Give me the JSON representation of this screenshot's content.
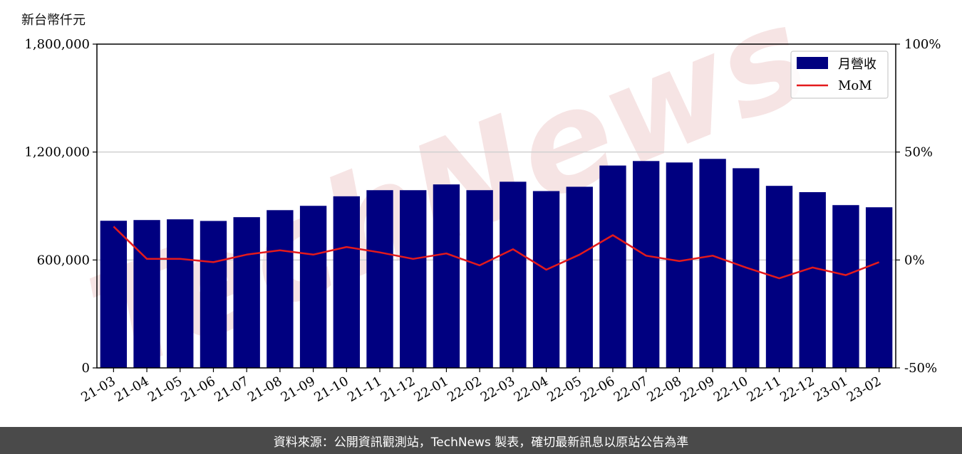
{
  "unit_label": "新台幣仟元",
  "watermark": "TechNews",
  "footer": "資料來源：公開資訊觀測站，TechNews 製表，確切最新訊息以原站公告為準",
  "colors": {
    "bar": "#000080",
    "line": "#e31a1c",
    "grid": "#d0d0d0",
    "watermark": "#f4dcdc"
  },
  "chart_data": {
    "type": "bar",
    "categories": [
      "21-03",
      "21-04",
      "21-05",
      "21-06",
      "21-07",
      "21-08",
      "21-09",
      "21-10",
      "21-11",
      "21-12",
      "22-01",
      "22-02",
      "22-03",
      "22-04",
      "22-05",
      "22-06",
      "22-07",
      "22-08",
      "22-09",
      "22-10",
      "22-11",
      "22-12",
      "23-01",
      "23-02"
    ],
    "series": [
      {
        "name": "月營收",
        "type": "bar",
        "axis": "left",
        "values": [
          818000,
          822000,
          826000,
          817000,
          838000,
          877000,
          901000,
          954000,
          988000,
          988000,
          1020000,
          988000,
          1035000,
          983000,
          1007000,
          1125000,
          1150000,
          1142000,
          1162000,
          1110000,
          1012000,
          977000,
          905000,
          893000
        ]
      },
      {
        "name": "MoM",
        "type": "line",
        "axis": "right",
        "values": [
          15.5,
          0.5,
          0.5,
          -1.0,
          2.5,
          4.5,
          2.5,
          6.0,
          3.5,
          0.5,
          3.0,
          -2.5,
          5.0,
          -4.5,
          2.5,
          11.5,
          2.0,
          -0.5,
          2.0,
          -3.5,
          -8.5,
          -3.5,
          -7.0,
          -1.0
        ]
      }
    ],
    "y_left": {
      "ylim": [
        0,
        1800000
      ],
      "ticks": [
        0,
        600000,
        1200000,
        1800000
      ],
      "tick_labels": [
        "0",
        "600,000",
        "1,200,000",
        "1,800,000"
      ]
    },
    "y_right": {
      "ylim": [
        -50,
        100
      ],
      "ticks": [
        -50,
        0,
        50,
        100
      ],
      "tick_labels": [
        "-50%",
        "0%",
        "50%",
        "100%"
      ]
    },
    "legend": "top-right",
    "grid": "horizontal"
  }
}
